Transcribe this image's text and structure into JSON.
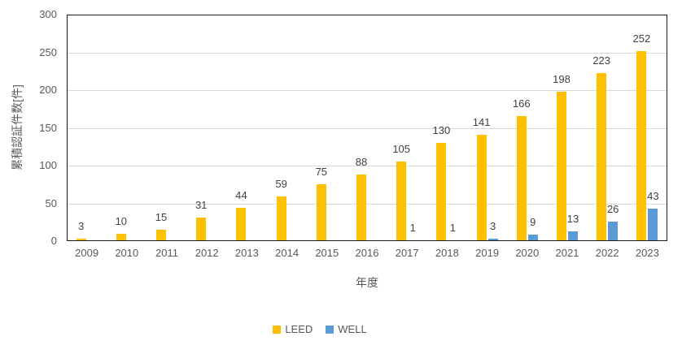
{
  "chart_data": {
    "type": "bar",
    "title": "",
    "xlabel": "年度",
    "ylabel": "累積認証件数[件]",
    "categories": [
      "2009",
      "2010",
      "2011",
      "2012",
      "2013",
      "2014",
      "2015",
      "2016",
      "2017",
      "2018",
      "2019",
      "2020",
      "2021",
      "2022",
      "2023"
    ],
    "series": [
      {
        "name": "LEED",
        "color": "#FFC000",
        "values": [
          3,
          10,
          15,
          31,
          44,
          59,
          75,
          88,
          105,
          130,
          141,
          166,
          198,
          223,
          252
        ]
      },
      {
        "name": "WELL",
        "color": "#5B9BD5",
        "values": [
          null,
          null,
          null,
          null,
          null,
          null,
          null,
          null,
          1,
          1,
          3,
          9,
          13,
          26,
          43
        ]
      }
    ],
    "ylim": [
      0,
      300
    ],
    "yticks": [
      0,
      50,
      100,
      150,
      200,
      250,
      300
    ],
    "grid": true,
    "grid_color": "#D9D9D9",
    "plot_border_color": "#1A1A1A",
    "axis_text_color": "#595959",
    "data_label_color": "#404040",
    "data_labels": true,
    "legend_position": "bottom"
  }
}
